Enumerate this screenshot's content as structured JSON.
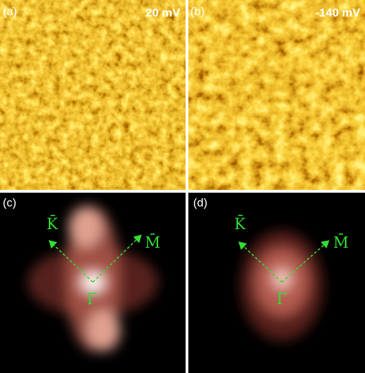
{
  "panels": [
    {
      "label": "(a)",
      "bias": "20 mV"
    },
    {
      "label": "(b)",
      "bias": "-140 mV"
    },
    {
      "label": "(c)",
      "directions": [
        "K̄",
        "M̄",
        "Γ̄"
      ]
    },
    {
      "label": "(d)",
      "directions": [
        "K̄",
        "M̄",
        "Γ̄"
      ]
    }
  ]
}
